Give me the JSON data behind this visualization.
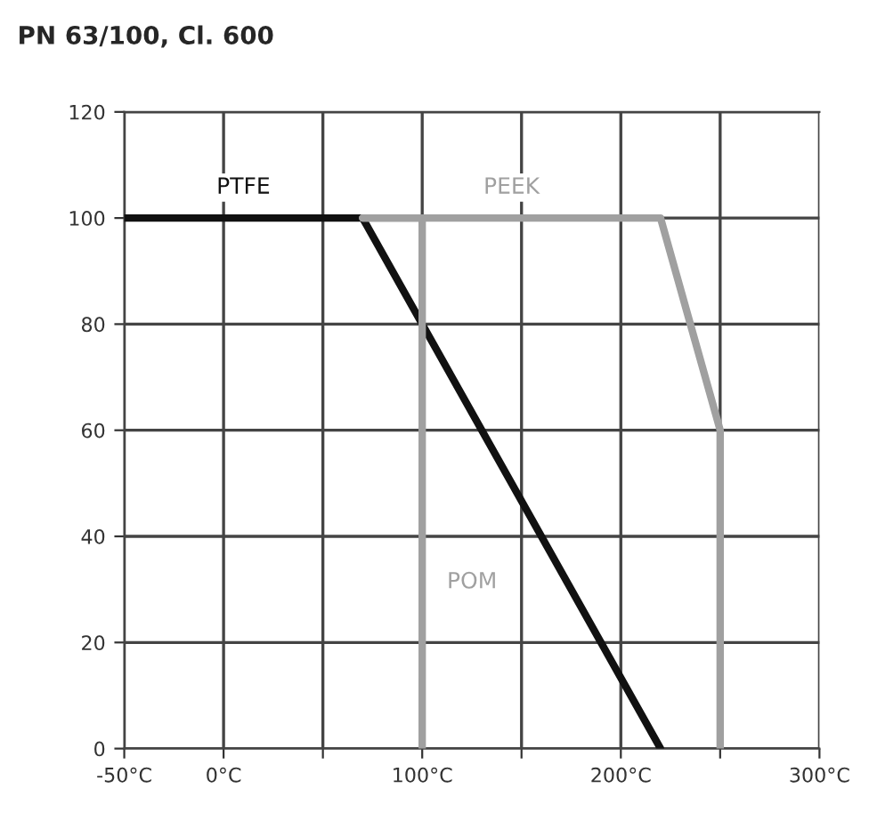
{
  "chart_data": {
    "type": "line",
    "title": "PN 63/100, Cl. 600",
    "xlim": [
      -50,
      300
    ],
    "xticks": [
      {
        "value": -50,
        "label": "-50°C"
      },
      {
        "value": 0,
        "label": "0°C"
      },
      {
        "value": 50,
        "label": null
      },
      {
        "value": 100,
        "label": "100°C"
      },
      {
        "value": 150,
        "label": null
      },
      {
        "value": 200,
        "label": "200°C"
      },
      {
        "value": 250,
        "label": null
      },
      {
        "value": 300,
        "label": "300°C"
      }
    ],
    "ylim": [
      0,
      120
    ],
    "yticks": [
      0,
      20,
      40,
      60,
      80,
      100,
      120
    ],
    "grid": true,
    "legend": false,
    "marker": "none",
    "line_style": "solid",
    "series": [
      {
        "name": "PTFE",
        "color": "#111111",
        "x": [
          -50,
          70,
          220
        ],
        "values": [
          100,
          100,
          0
        ]
      },
      {
        "name": "PEEK",
        "color": "#a0a0a0",
        "x": [
          70,
          220,
          250,
          250
        ],
        "values": [
          100,
          100,
          60,
          0
        ]
      },
      {
        "name": "POM",
        "color": "#a0a0a0",
        "x": [
          100,
          100,
          70
        ],
        "values": [
          0,
          100,
          100
        ]
      }
    ]
  }
}
